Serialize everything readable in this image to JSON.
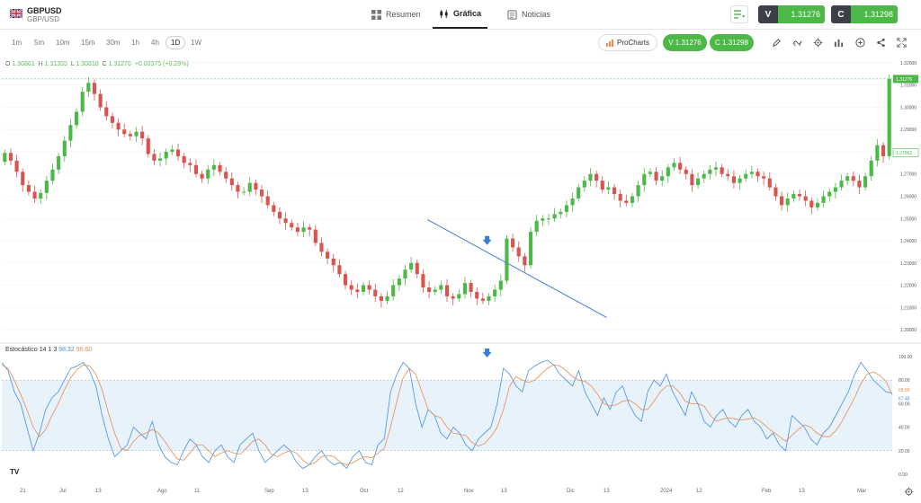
{
  "header": {
    "symbol": "GBPUSD",
    "subtitle": "GBP/USD",
    "tabs": [
      {
        "label": "Resumen",
        "icon": "grid-icon"
      },
      {
        "label": "Gráfica",
        "icon": "candles-icon"
      },
      {
        "label": "Noticias",
        "icon": "news-icon"
      }
    ],
    "sell": {
      "label": "V",
      "value": "1.31276"
    },
    "buy": {
      "label": "C",
      "value": "1.31298"
    }
  },
  "toolbar": {
    "timeframes": [
      "1m",
      "5m",
      "10m",
      "15m",
      "30m",
      "1h",
      "4h",
      "1D",
      "1W"
    ],
    "selected_timeframe": "1D",
    "procharts_label": "ProCharts",
    "sell_pill": "V 1.31276",
    "buy_pill": "C 1.31298",
    "icons": [
      "pencil-icon",
      "indicators-icon",
      "settings-icon",
      "bar-chart-icon",
      "add-icon",
      "share-icon",
      "fullscreen-icon"
    ]
  },
  "ohlc": {
    "o_label": "O",
    "o": "1.30861",
    "h_label": "H",
    "h": "1.31355",
    "l_label": "L",
    "l": "1.30818",
    "c_label": "C",
    "c": "1.31276",
    "change": "+0.00375 (+0.29%)"
  },
  "stochastic": {
    "name": "Estocástico",
    "params": "14 1 3",
    "k": "98.32",
    "d": "96.60"
  },
  "price_axis": {
    "labels": [
      "1.32000",
      "1.31000",
      "1.30000",
      "1.29000",
      "1.28000",
      "1.27000",
      "1.26000",
      "1.25000",
      "1.24000",
      "1.23000",
      "1.22000",
      "1.21000",
      "1.20000"
    ],
    "current_tag": "1.31276",
    "secondary_tag": "1.27962"
  },
  "stoch_axis": {
    "labels": [
      "100.00",
      "80.00",
      "60.00",
      "40.00",
      "20.00",
      "0.00"
    ],
    "k_tag": "68.85",
    "d_tag": "67.48"
  },
  "x_axis": {
    "labels": [
      "21",
      "Jul",
      "13",
      "Ago",
      "11",
      "Sep",
      "13",
      "Oct",
      "12",
      "Nov",
      "13",
      "Dic",
      "13",
      "2024",
      "12",
      "Feb",
      "13",
      "Mar"
    ]
  },
  "colors": {
    "up": "#4cb848",
    "down": "#d9534f",
    "k_line": "#4a90e2",
    "d_line": "#e98b4e",
    "band": "#e8f2fb",
    "trendline": "#3b7dd8"
  },
  "chart_data": [
    {
      "type": "candlestick",
      "title": "",
      "symbol": "GBP/USD",
      "interval": "1D",
      "ylim": [
        1.198,
        1.322
      ],
      "trendline": {
        "from": {
          "date": "2023-09-26",
          "price": 1.2495
        },
        "to": {
          "date": "2023-11-07",
          "price": 1.2055
        }
      },
      "marker": {
        "type": "down-arrow",
        "date": "2023-10-10",
        "price": 1.2397
      },
      "closes": [
        1.2795,
        1.276,
        1.271,
        1.265,
        1.262,
        1.259,
        1.2615,
        1.267,
        1.272,
        1.278,
        1.285,
        1.292,
        1.298,
        1.307,
        1.311,
        1.306,
        1.3,
        1.296,
        1.293,
        1.29,
        1.288,
        1.287,
        1.289,
        1.286,
        1.279,
        1.276,
        1.277,
        1.28,
        1.281,
        1.278,
        1.275,
        1.274,
        1.27,
        1.268,
        1.272,
        1.274,
        1.271,
        1.268,
        1.265,
        1.262,
        1.262,
        1.266,
        1.263,
        1.26,
        1.256,
        1.253,
        1.25,
        1.248,
        1.246,
        1.244,
        1.246,
        1.245,
        1.239,
        1.235,
        1.232,
        1.229,
        1.225,
        1.22,
        1.218,
        1.217,
        1.22,
        1.218,
        1.215,
        1.213,
        1.215,
        1.22,
        1.223,
        1.227,
        1.23,
        1.225,
        1.219,
        1.217,
        1.218,
        1.22,
        1.215,
        1.214,
        1.216,
        1.221,
        1.217,
        1.214,
        1.213,
        1.215,
        1.218,
        1.222,
        1.241,
        1.237,
        1.233,
        1.229,
        1.244,
        1.249,
        1.25,
        1.25,
        1.252,
        1.253,
        1.256,
        1.259,
        1.264,
        1.267,
        1.27,
        1.267,
        1.263,
        1.264,
        1.261,
        1.258,
        1.257,
        1.26,
        1.265,
        1.27,
        1.271,
        1.267,
        1.269,
        1.273,
        1.275,
        1.272,
        1.27,
        1.265,
        1.268,
        1.27,
        1.272,
        1.273,
        1.27,
        1.269,
        1.266,
        1.268,
        1.27,
        1.271,
        1.269,
        1.268,
        1.264,
        1.26,
        1.256,
        1.259,
        1.261,
        1.26,
        1.258,
        1.255,
        1.257,
        1.26,
        1.262,
        1.264,
        1.267,
        1.269,
        1.267,
        1.264,
        1.269,
        1.276,
        1.283,
        1.278,
        1.3128
      ]
    },
    {
      "type": "line",
      "title": "Estocástico 14 1 3",
      "ylim": [
        0,
        100
      ],
      "bands": [
        20,
        80
      ],
      "series": [
        {
          "name": "%K",
          "values": [
            95,
            88,
            70,
            60,
            40,
            20,
            35,
            55,
            65,
            70,
            80,
            90,
            92,
            95,
            88,
            75,
            50,
            30,
            15,
            20,
            25,
            40,
            35,
            30,
            45,
            25,
            15,
            10,
            8,
            20,
            30,
            25,
            15,
            10,
            20,
            25,
            15,
            10,
            25,
            30,
            35,
            20,
            10,
            15,
            20,
            25,
            20,
            10,
            5,
            8,
            15,
            20,
            12,
            8,
            10,
            5,
            15,
            20,
            10,
            8,
            25,
            30,
            70,
            85,
            95,
            90,
            60,
            40,
            55,
            50,
            35,
            30,
            40,
            35,
            25,
            20,
            30,
            35,
            40,
            60,
            90,
            85,
            75,
            70,
            88,
            92,
            95,
            97,
            93,
            85,
            80,
            75,
            88,
            70,
            60,
            50,
            65,
            55,
            70,
            75,
            60,
            50,
            45,
            70,
            80,
            75,
            85,
            70,
            60,
            50,
            70,
            60,
            45,
            40,
            50,
            55,
            45,
            40,
            50,
            55,
            45,
            40,
            30,
            35,
            25,
            20,
            50,
            45,
            40,
            30,
            25,
            35,
            40,
            50,
            60,
            70,
            85,
            95,
            88,
            80,
            75,
            70,
            68.85
          ]
        },
        {
          "name": "%D",
          "values": [
            93,
            90,
            80,
            68,
            55,
            40,
            32,
            38,
            50,
            60,
            72,
            82,
            89,
            93,
            92,
            85,
            72,
            52,
            35,
            22,
            20,
            28,
            33,
            35,
            38,
            35,
            28,
            20,
            13,
            12,
            18,
            25,
            25,
            20,
            15,
            18,
            20,
            18,
            17,
            22,
            28,
            30,
            25,
            17,
            15,
            18,
            20,
            18,
            12,
            8,
            10,
            15,
            16,
            15,
            10,
            8,
            10,
            13,
            15,
            14,
            18,
            22,
            40,
            62,
            82,
            90,
            85,
            70,
            55,
            50,
            48,
            40,
            35,
            34,
            33,
            27,
            24,
            26,
            32,
            40,
            55,
            75,
            83,
            80,
            78,
            80,
            85,
            90,
            93,
            92,
            88,
            83,
            80,
            79,
            75,
            68,
            60,
            58,
            59,
            62,
            63,
            60,
            55,
            55,
            62,
            70,
            75,
            75,
            70,
            62,
            60,
            60,
            58,
            50,
            45,
            47,
            48,
            47,
            46,
            47,
            48,
            45,
            40,
            36,
            32,
            28,
            33,
            38,
            42,
            40,
            35,
            32,
            32,
            37,
            45,
            55,
            65,
            77,
            85,
            87,
            84,
            79,
            67.48
          ]
        }
      ]
    }
  ]
}
